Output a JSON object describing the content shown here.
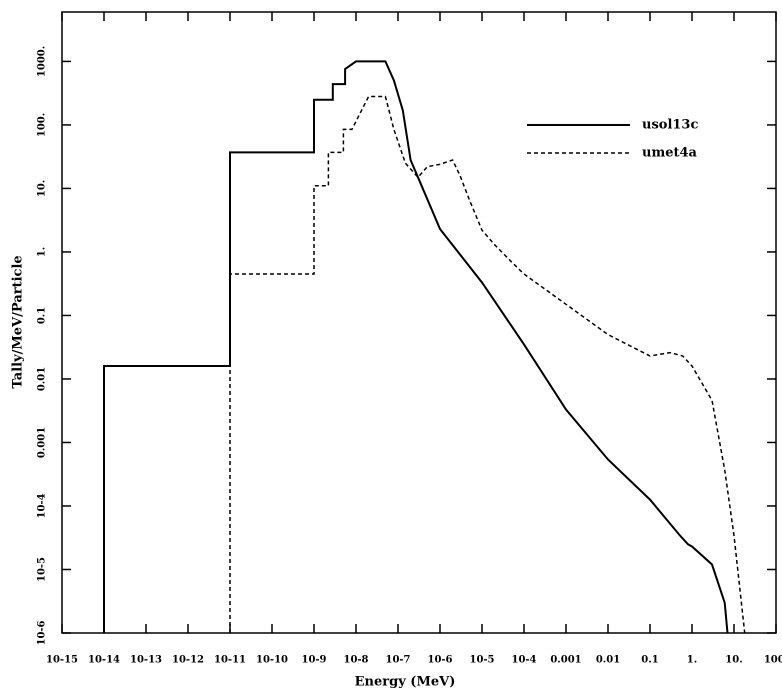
{
  "chart_data": {
    "type": "line",
    "xlabel": "Energy (MeV)",
    "ylabel": "Tally/MeV/Particle",
    "xscale": "log",
    "yscale": "log",
    "legend": "upper right",
    "xlim": [
      1e-15,
      100
    ],
    "ylim": [
      1e-06,
      6000
    ],
    "xticks": [
      {
        "value": 1e-15,
        "label": "10-15"
      },
      {
        "value": 1e-14,
        "label": "10-14"
      },
      {
        "value": 1e-13,
        "label": "10-13"
      },
      {
        "value": 1e-12,
        "label": "10-12"
      },
      {
        "value": 1e-11,
        "label": "10-11"
      },
      {
        "value": 1e-10,
        "label": "10-10"
      },
      {
        "value": 1e-09,
        "label": "10-9"
      },
      {
        "value": 1e-08,
        "label": "10-8"
      },
      {
        "value": 1e-07,
        "label": "10-7"
      },
      {
        "value": 1e-06,
        "label": "10-6"
      },
      {
        "value": 1e-05,
        "label": "10-5"
      },
      {
        "value": 0.0001,
        "label": "10-4"
      },
      0.001,
      0.01,
      0.1,
      {
        "value": 1,
        "label": "1."
      },
      {
        "value": 10,
        "label": "10."
      },
      {
        "value": 100,
        "label": "100."
      }
    ],
    "yticks": [
      {
        "value": 1000,
        "label": "1000."
      },
      {
        "value": 100,
        "label": "100."
      },
      {
        "value": 10,
        "label": "10."
      },
      {
        "value": 1,
        "label": "1."
      },
      0.1,
      0.01,
      0.001,
      {
        "value": 0.0001,
        "label": "10-4"
      },
      {
        "value": 1e-05,
        "label": "10-5"
      },
      {
        "value": 1e-06,
        "label": "10-6"
      }
    ],
    "series": [
      {
        "name": "usol13c",
        "color": "#000000",
        "dash": "solid",
        "x": [
          1e-14,
          1e-14,
          1e-11,
          1e-11,
          1e-09,
          1e-09,
          2.8e-09,
          2.8e-09,
          5.5e-09,
          5.5e-09,
          1e-08,
          5e-08,
          8e-08,
          1.3e-07,
          2e-07,
          3e-07,
          1e-06,
          1e-05,
          0.0001,
          0.001,
          0.01,
          0.1,
          0.5,
          0.8,
          1,
          3,
          6,
          7
        ],
        "values": [
          1e-06,
          0.016,
          0.016,
          37,
          37,
          250,
          250,
          440,
          440,
          760,
          1000,
          1000,
          500,
          170,
          28,
          15,
          2.3,
          0.33,
          0.035,
          0.0033,
          0.00054,
          0.000126,
          3.5e-05,
          2.5e-05,
          2.3e-05,
          1.2e-05,
          3e-06,
          1e-06
        ]
      },
      {
        "name": "umet4a",
        "color": "#000000",
        "dash": "dashed",
        "x": [
          1e-11,
          1e-11,
          1e-09,
          1e-09,
          2.2e-09,
          2.2e-09,
          5e-09,
          5e-09,
          8e-09,
          2e-08,
          5e-08,
          8e-08,
          1.5e-07,
          3e-07,
          5e-07,
          1e-06,
          2e-06,
          3e-06,
          5e-06,
          1e-05,
          2e-05,
          5e-05,
          0.0001,
          0.001,
          0.01,
          0.1,
          0.3,
          0.6,
          1,
          3,
          6,
          10,
          15,
          18
        ],
        "values": [
          1e-06,
          0.45,
          0.45,
          11,
          11,
          37,
          37,
          85,
          85,
          280,
          280,
          85,
          25,
          15,
          22,
          24,
          28,
          16,
          6.6,
          2.2,
          1.3,
          0.7,
          0.45,
          0.15,
          0.05,
          0.023,
          0.026,
          0.023,
          0.016,
          0.0046,
          0.00037,
          3.4e-05,
          3e-06,
          1e-06
        ]
      }
    ]
  }
}
